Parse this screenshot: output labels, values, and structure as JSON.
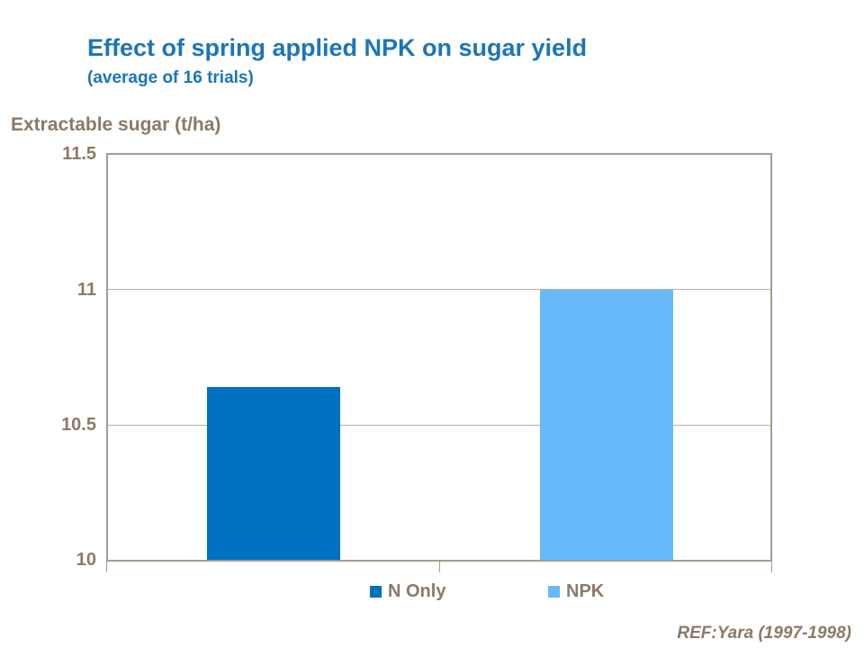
{
  "chart_data": {
    "type": "bar",
    "title": "Effect of spring applied NPK on sugar yield",
    "subtitle": "(average of 16 trials)",
    "ylabel": "Extractable sugar (t/ha)",
    "categories": [
      "N Only",
      "NPK"
    ],
    "values": [
      10.64,
      11.0
    ],
    "series_colors": [
      "#0070c0",
      "#66b9fa"
    ],
    "ylim": [
      10,
      11.5
    ],
    "ytick_step": 0.5,
    "ytick_labels": [
      "11.5",
      "11",
      "10.5",
      "10"
    ],
    "grid": true,
    "legend_position": "bottom",
    "plot_border_color": "#a59b8e",
    "gridline_color": "#b8afa4",
    "title_color": "#1b75bc",
    "text_color": "#8a7a68",
    "source": "REF:Yara (1997-1998)"
  }
}
